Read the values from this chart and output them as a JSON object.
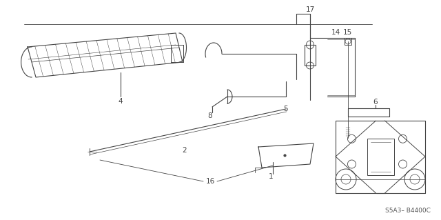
{
  "bg_color": "#ffffff",
  "line_color": "#444444",
  "diagram_code": "S5A3– B4400C",
  "label_fs": 7.5
}
